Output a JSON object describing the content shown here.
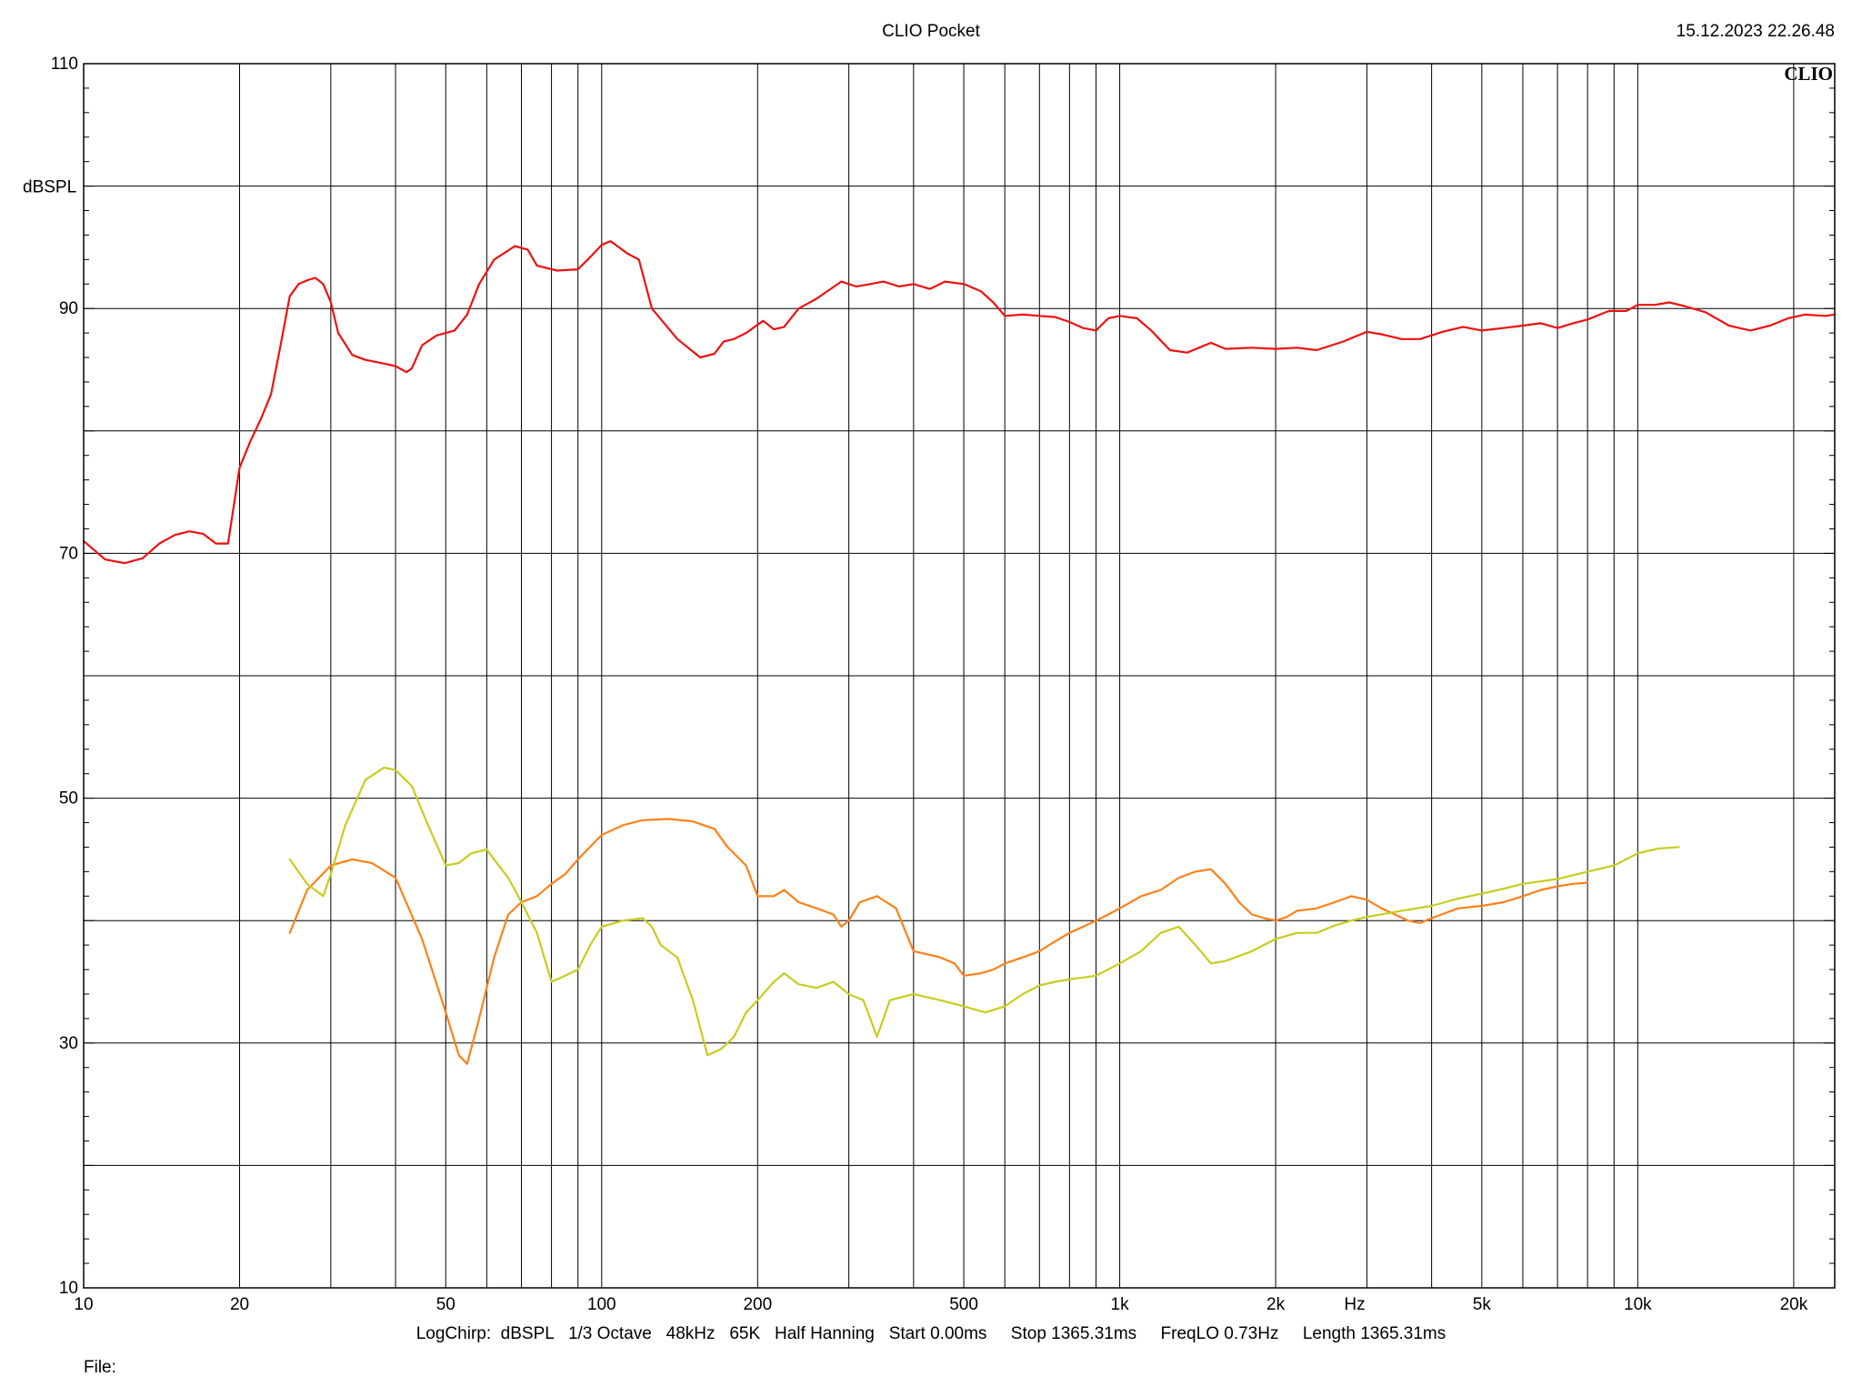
{
  "header": {
    "app_title": "CLIO Pocket",
    "timestamp": "15.12.2023 22.26.48"
  },
  "logo": "CLIO",
  "footer": {
    "settings": "LogChirp:  dBSPL   1/3 Octave   48kHz   65K   Half Hanning   Start 0.00ms     Stop 1365.31ms     FreqLO 0.73Hz     Length 1365.31ms",
    "file_label": "File:"
  },
  "chart_data": {
    "type": "line",
    "title": "",
    "xlabel": "Hz",
    "ylabel": "dBSPL",
    "x_scale": "log",
    "xlim": [
      10,
      24000
    ],
    "ylim": [
      10,
      110
    ],
    "grid": true,
    "y_ticks": [
      110,
      90,
      70,
      50,
      30,
      10
    ],
    "x_ticks": [
      {
        "value": 10,
        "label": "10"
      },
      {
        "value": 20,
        "label": "20"
      },
      {
        "value": 50,
        "label": "50"
      },
      {
        "value": 100,
        "label": "100"
      },
      {
        "value": 200,
        "label": "200"
      },
      {
        "value": 500,
        "label": "500"
      },
      {
        "value": 1000,
        "label": "1k"
      },
      {
        "value": 2000,
        "label": "2k"
      },
      {
        "value": 5000,
        "label": "5k"
      },
      {
        "value": 10000,
        "label": "10k"
      },
      {
        "value": 20000,
        "label": "20k"
      }
    ],
    "series": [
      {
        "color": "#ee1111",
        "points": [
          [
            10,
            71.0
          ],
          [
            11,
            69.5
          ],
          [
            12,
            69.2
          ],
          [
            13,
            69.6
          ],
          [
            14,
            70.8
          ],
          [
            15,
            71.5
          ],
          [
            16,
            71.8
          ],
          [
            17,
            71.6
          ],
          [
            18,
            70.8
          ],
          [
            19,
            70.8
          ],
          [
            20,
            77
          ],
          [
            21,
            79.2
          ],
          [
            22,
            81
          ],
          [
            23,
            83
          ],
          [
            24,
            87
          ],
          [
            25,
            91
          ],
          [
            26,
            92
          ],
          [
            27,
            92.3
          ],
          [
            28,
            92.5
          ],
          [
            29,
            92
          ],
          [
            30,
            90.5
          ],
          [
            31,
            88
          ],
          [
            33,
            86.2
          ],
          [
            35,
            85.8
          ],
          [
            37,
            85.6
          ],
          [
            40,
            85.3
          ],
          [
            42,
            84.8
          ],
          [
            43,
            85.1
          ],
          [
            45,
            87
          ],
          [
            48,
            87.8
          ],
          [
            52,
            88.2
          ],
          [
            55,
            89.5
          ],
          [
            58,
            92
          ],
          [
            62,
            94
          ],
          [
            68,
            95.1
          ],
          [
            72,
            94.8
          ],
          [
            75,
            93.5
          ],
          [
            82,
            93.1
          ],
          [
            90,
            93.2
          ],
          [
            95,
            94.2
          ],
          [
            100,
            95.2
          ],
          [
            104,
            95.5
          ],
          [
            108,
            95
          ],
          [
            112,
            94.5
          ],
          [
            118,
            94
          ],
          [
            125,
            90
          ],
          [
            140,
            87.5
          ],
          [
            155,
            86
          ],
          [
            165,
            86.3
          ],
          [
            172,
            87.3
          ],
          [
            180,
            87.5
          ],
          [
            190,
            88
          ],
          [
            205,
            89
          ],
          [
            215,
            88.3
          ],
          [
            225,
            88.5
          ],
          [
            240,
            90
          ],
          [
            260,
            90.8
          ],
          [
            290,
            92.2
          ],
          [
            310,
            91.8
          ],
          [
            330,
            92
          ],
          [
            350,
            92.2
          ],
          [
            375,
            91.8
          ],
          [
            400,
            92
          ],
          [
            430,
            91.6
          ],
          [
            460,
            92.2
          ],
          [
            500,
            92
          ],
          [
            540,
            91.4
          ],
          [
            570,
            90.5
          ],
          [
            600,
            89.4
          ],
          [
            650,
            89.5
          ],
          [
            700,
            89.4
          ],
          [
            750,
            89.3
          ],
          [
            800,
            88.9
          ],
          [
            850,
            88.4
          ],
          [
            900,
            88.2
          ],
          [
            950,
            89.2
          ],
          [
            1000,
            89.4
          ],
          [
            1080,
            89.2
          ],
          [
            1150,
            88.2
          ],
          [
            1250,
            86.6
          ],
          [
            1350,
            86.4
          ],
          [
            1500,
            87.2
          ],
          [
            1600,
            86.7
          ],
          [
            1800,
            86.8
          ],
          [
            2000,
            86.7
          ],
          [
            2200,
            86.8
          ],
          [
            2400,
            86.6
          ],
          [
            2700,
            87.3
          ],
          [
            3000,
            88.1
          ],
          [
            3200,
            87.9
          ],
          [
            3500,
            87.5
          ],
          [
            3800,
            87.5
          ],
          [
            4200,
            88.1
          ],
          [
            4600,
            88.5
          ],
          [
            5000,
            88.2
          ],
          [
            5500,
            88.4
          ],
          [
            6000,
            88.6
          ],
          [
            6500,
            88.8
          ],
          [
            7000,
            88.4
          ],
          [
            7500,
            88.8
          ],
          [
            8000,
            89.1
          ],
          [
            8800,
            89.8
          ],
          [
            9500,
            89.8
          ],
          [
            10000,
            90.3
          ],
          [
            10800,
            90.3
          ],
          [
            11500,
            90.5
          ],
          [
            12300,
            90.2
          ],
          [
            13500,
            89.7
          ],
          [
            15000,
            88.6
          ],
          [
            16500,
            88.2
          ],
          [
            18000,
            88.6
          ],
          [
            19500,
            89.2
          ],
          [
            21000,
            89.5
          ],
          [
            23000,
            89.4
          ],
          [
            24000,
            89.5
          ]
        ]
      },
      {
        "color": "#ff8018",
        "points": [
          [
            25,
            39
          ],
          [
            27,
            42.5
          ],
          [
            30,
            44.5
          ],
          [
            33,
            45
          ],
          [
            36,
            44.7
          ],
          [
            40,
            43.5
          ],
          [
            45,
            38.5
          ],
          [
            50,
            32.5
          ],
          [
            53,
            29
          ],
          [
            55,
            28.3
          ],
          [
            58,
            32
          ],
          [
            62,
            37
          ],
          [
            66,
            40.5
          ],
          [
            70,
            41.5
          ],
          [
            75,
            42
          ],
          [
            80,
            43
          ],
          [
            85,
            43.8
          ],
          [
            90,
            45
          ],
          [
            100,
            47
          ],
          [
            110,
            47.8
          ],
          [
            120,
            48.2
          ],
          [
            135,
            48.3
          ],
          [
            150,
            48.1
          ],
          [
            165,
            47.5
          ],
          [
            175,
            46
          ],
          [
            190,
            44.5
          ],
          [
            200,
            42
          ],
          [
            215,
            42
          ],
          [
            225,
            42.5
          ],
          [
            240,
            41.5
          ],
          [
            260,
            41
          ],
          [
            280,
            40.5
          ],
          [
            290,
            39.5
          ],
          [
            300,
            40
          ],
          [
            315,
            41.5
          ],
          [
            340,
            42
          ],
          [
            370,
            41
          ],
          [
            400,
            37.5
          ],
          [
            450,
            37
          ],
          [
            480,
            36.5
          ],
          [
            500,
            35.5
          ],
          [
            540,
            35.7
          ],
          [
            570,
            36
          ],
          [
            600,
            36.5
          ],
          [
            650,
            37
          ],
          [
            700,
            37.5
          ],
          [
            750,
            38.3
          ],
          [
            800,
            39
          ],
          [
            850,
            39.5
          ],
          [
            900,
            40
          ],
          [
            950,
            40.5
          ],
          [
            1000,
            41
          ],
          [
            1100,
            42
          ],
          [
            1200,
            42.5
          ],
          [
            1300,
            43.5
          ],
          [
            1400,
            44
          ],
          [
            1500,
            44.2
          ],
          [
            1600,
            43
          ],
          [
            1700,
            41.5
          ],
          [
            1800,
            40.5
          ],
          [
            1900,
            40.2
          ],
          [
            2000,
            40
          ],
          [
            2100,
            40.3
          ],
          [
            2200,
            40.8
          ],
          [
            2400,
            41
          ],
          [
            2600,
            41.5
          ],
          [
            2800,
            42
          ],
          [
            3000,
            41.7
          ],
          [
            3200,
            41
          ],
          [
            3400,
            40.5
          ],
          [
            3600,
            40
          ],
          [
            3800,
            39.8
          ],
          [
            4000,
            40.2
          ],
          [
            4500,
            41
          ],
          [
            5000,
            41.2
          ],
          [
            5500,
            41.5
          ],
          [
            6000,
            42
          ],
          [
            6500,
            42.5
          ],
          [
            7000,
            42.8
          ],
          [
            7500,
            43
          ],
          [
            8000,
            43.1
          ]
        ]
      },
      {
        "color": "#c8cc1e",
        "points": [
          [
            25,
            45
          ],
          [
            27,
            43
          ],
          [
            29,
            42
          ],
          [
            30,
            43.8
          ],
          [
            32,
            47.8
          ],
          [
            35,
            51.5
          ],
          [
            38,
            52.5
          ],
          [
            40,
            52.3
          ],
          [
            43,
            51
          ],
          [
            46,
            48
          ],
          [
            50,
            44.5
          ],
          [
            53,
            44.7
          ],
          [
            56,
            45.5
          ],
          [
            60,
            45.8
          ],
          [
            63,
            44.6
          ],
          [
            66,
            43.5
          ],
          [
            70,
            41.5
          ],
          [
            75,
            39
          ],
          [
            80,
            35
          ],
          [
            85,
            35.5
          ],
          [
            90,
            36
          ],
          [
            95,
            38
          ],
          [
            100,
            39.5
          ],
          [
            110,
            40
          ],
          [
            120,
            40.2
          ],
          [
            125,
            39.5
          ],
          [
            130,
            38
          ],
          [
            140,
            37
          ],
          [
            150,
            33.5
          ],
          [
            160,
            29
          ],
          [
            170,
            29.5
          ],
          [
            180,
            30.5
          ],
          [
            190,
            32.5
          ],
          [
            200,
            33.5
          ],
          [
            215,
            35
          ],
          [
            225,
            35.7
          ],
          [
            240,
            34.8
          ],
          [
            260,
            34.5
          ],
          [
            280,
            35
          ],
          [
            300,
            34
          ],
          [
            320,
            33.5
          ],
          [
            330,
            32
          ],
          [
            340,
            30.5
          ],
          [
            360,
            33.5
          ],
          [
            400,
            34
          ],
          [
            450,
            33.5
          ],
          [
            500,
            33
          ],
          [
            550,
            32.5
          ],
          [
            600,
            33
          ],
          [
            650,
            34
          ],
          [
            700,
            34.7
          ],
          [
            750,
            35
          ],
          [
            800,
            35.2
          ],
          [
            900,
            35.5
          ],
          [
            1000,
            36.5
          ],
          [
            1100,
            37.5
          ],
          [
            1200,
            39
          ],
          [
            1300,
            39.5
          ],
          [
            1400,
            38
          ],
          [
            1500,
            36.5
          ],
          [
            1600,
            36.7
          ],
          [
            1800,
            37.5
          ],
          [
            2000,
            38.5
          ],
          [
            2200,
            39
          ],
          [
            2400,
            39
          ],
          [
            2600,
            39.6
          ],
          [
            2800,
            40
          ],
          [
            3000,
            40.3
          ],
          [
            3500,
            40.8
          ],
          [
            4000,
            41.2
          ],
          [
            4500,
            41.8
          ],
          [
            5000,
            42.2
          ],
          [
            5500,
            42.6
          ],
          [
            6000,
            43
          ],
          [
            7000,
            43.4
          ],
          [
            8000,
            44
          ],
          [
            9000,
            44.5
          ],
          [
            10000,
            45.5
          ],
          [
            11000,
            45.9
          ],
          [
            12000,
            46
          ]
        ]
      }
    ]
  }
}
